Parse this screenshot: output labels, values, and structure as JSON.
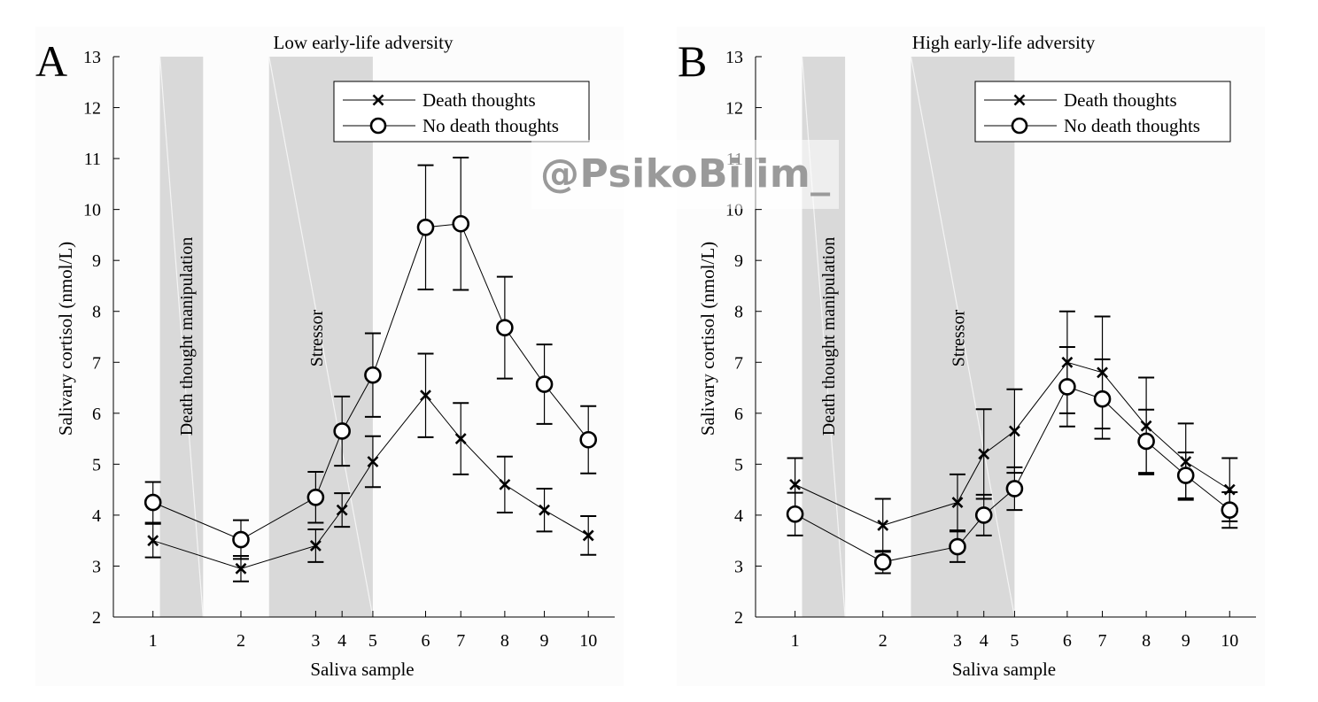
{
  "watermark": "@PsikoBilim_",
  "colors": {
    "shade": "#d9d9d9",
    "line": "#000000",
    "plot_bg": "#fcfcfc"
  },
  "chart_data": [
    {
      "type": "line",
      "panel_letter": "A",
      "title": "Low early-life adversity",
      "xlabel": "Saliva sample",
      "ylabel": "Salivary cortisol (nmol/L)",
      "ylim": [
        2,
        13
      ],
      "yticks": [
        2,
        3,
        4,
        5,
        6,
        7,
        8,
        9,
        10,
        11,
        12,
        13
      ],
      "x_positions": [
        1,
        2,
        2.85,
        3.15,
        3.5,
        4.1,
        4.5,
        5,
        5.45,
        5.95
      ],
      "x_tick_labels": [
        "1",
        "2",
        "3",
        "4",
        "5",
        "6",
        "7",
        "8",
        "9",
        "10"
      ],
      "xlim": [
        0.55,
        6.25
      ],
      "shaded_regions": [
        {
          "x0": 1.08,
          "x1": 1.57,
          "label": "Death thought manipulation"
        },
        {
          "x0": 2.32,
          "x1": 3.5,
          "label": "Stressor"
        }
      ],
      "legend_placement": "top-right",
      "series": [
        {
          "name": "Death thoughts",
          "marker": "x",
          "values": [
            3.5,
            2.95,
            3.4,
            4.1,
            5.05,
            6.35,
            5.5,
            4.6,
            4.1,
            3.6
          ],
          "errors": [
            0.33,
            0.25,
            0.32,
            0.33,
            0.5,
            0.82,
            0.7,
            0.55,
            0.42,
            0.38
          ]
        },
        {
          "name": "No death thoughts",
          "marker": "o",
          "values": [
            4.25,
            3.52,
            4.35,
            5.65,
            6.75,
            9.65,
            9.72,
            7.68,
            6.57,
            5.48
          ],
          "errors": [
            0.4,
            0.38,
            0.5,
            0.68,
            0.82,
            1.22,
            1.3,
            1.0,
            0.78,
            0.66
          ]
        }
      ]
    },
    {
      "type": "line",
      "panel_letter": "B",
      "title": "High early-life adversity",
      "xlabel": "Saliva sample",
      "ylabel": "Salivary cortisol (nmol/L)",
      "ylim": [
        2,
        13
      ],
      "yticks": [
        2,
        3,
        4,
        5,
        6,
        7,
        8,
        9,
        10,
        11,
        12,
        13
      ],
      "x_positions": [
        1,
        2,
        2.85,
        3.15,
        3.5,
        4.1,
        4.5,
        5,
        5.45,
        5.95
      ],
      "x_tick_labels": [
        "1",
        "2",
        "3",
        "4",
        "5",
        "6",
        "7",
        "8",
        "9",
        "10"
      ],
      "xlim": [
        0.55,
        6.25
      ],
      "shaded_regions": [
        {
          "x0": 1.08,
          "x1": 1.57,
          "label": "Death thought manipulation"
        },
        {
          "x0": 2.32,
          "x1": 3.5,
          "label": "Stressor"
        }
      ],
      "legend_placement": "top-right",
      "series": [
        {
          "name": "Death thoughts",
          "marker": "x",
          "values": [
            4.6,
            3.8,
            4.25,
            5.2,
            5.65,
            7.0,
            6.8,
            5.75,
            5.05,
            4.5
          ],
          "errors": [
            0.52,
            0.52,
            0.55,
            0.88,
            0.82,
            1.0,
            1.1,
            0.95,
            0.75,
            0.62
          ]
        },
        {
          "name": "No death thoughts",
          "marker": "o",
          "values": [
            4.02,
            3.08,
            3.38,
            4.0,
            4.52,
            6.52,
            6.28,
            5.45,
            4.78,
            4.1
          ],
          "errors": [
            0.42,
            0.22,
            0.3,
            0.4,
            0.42,
            0.78,
            0.78,
            0.62,
            0.45,
            0.35
          ]
        }
      ]
    }
  ]
}
